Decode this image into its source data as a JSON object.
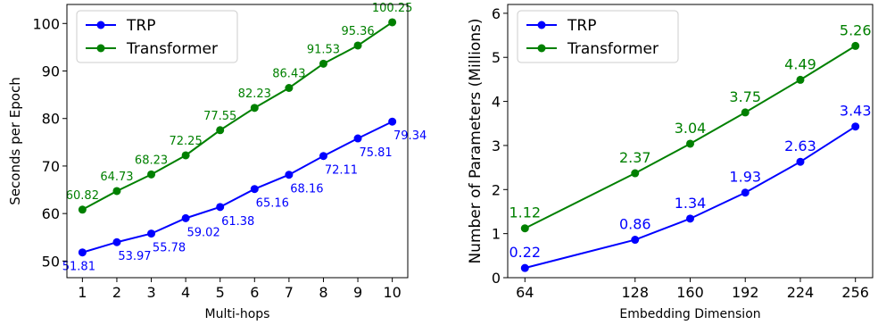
{
  "chart_data": [
    {
      "type": "line",
      "title": "",
      "xlabel": "Multi-hops",
      "ylabel": "Seconds per Epoch",
      "x": [
        1,
        2,
        3,
        4,
        5,
        6,
        7,
        8,
        9,
        10
      ],
      "xticks": [
        "1",
        "2",
        "3",
        "4",
        "5",
        "6",
        "7",
        "8",
        "9",
        "10"
      ],
      "yticks": [
        "50",
        "60",
        "70",
        "80",
        "90",
        "100"
      ],
      "xlim": [
        0.55,
        10.45
      ],
      "ylim": [
        46.5,
        104
      ],
      "legend": "top-left",
      "grid": false,
      "series": [
        {
          "name": "TRP",
          "color": "#0000ff",
          "values": [
            51.81,
            53.97,
            55.78,
            59.02,
            61.38,
            65.16,
            68.16,
            72.11,
            75.81,
            79.34
          ],
          "labels": [
            "51.81",
            "53.97",
            "55.78",
            "59.02",
            "61.38",
            "65.16",
            "68.16",
            "72.11",
            "75.81",
            "79.34"
          ]
        },
        {
          "name": "Transformer",
          "color": "#008000",
          "values": [
            60.82,
            64.73,
            68.23,
            72.25,
            77.55,
            82.23,
            86.43,
            91.53,
            95.36,
            100.25
          ],
          "labels": [
            "60.82",
            "64.73",
            "68.23",
            "72.25",
            "77.55",
            "82.23",
            "86.43",
            "91.53",
            "95.36",
            "100.25"
          ]
        }
      ]
    },
    {
      "type": "line",
      "title": "",
      "xlabel": "Embedding Dimension",
      "ylabel": "Number of Parameters (Millions)",
      "x": [
        64,
        128,
        160,
        192,
        224,
        256
      ],
      "xticks": [
        "64",
        "128",
        "160",
        "192",
        "224",
        "256"
      ],
      "yticks": [
        "0",
        "1",
        "2",
        "3",
        "4",
        "5",
        "6"
      ],
      "xlim": [
        54,
        266
      ],
      "ylim": [
        0,
        6.2
      ],
      "legend": "top-left",
      "grid": false,
      "series": [
        {
          "name": "TRP",
          "color": "#0000ff",
          "values": [
            0.22,
            0.86,
            1.34,
            1.93,
            2.63,
            3.43
          ],
          "labels": [
            "0.22",
            "0.86",
            "1.34",
            "1.93",
            "2.63",
            "3.43"
          ]
        },
        {
          "name": "Transformer",
          "color": "#008000",
          "values": [
            1.12,
            2.37,
            3.04,
            3.75,
            4.49,
            5.26
          ],
          "labels": [
            "1.12",
            "2.37",
            "3.04",
            "3.75",
            "4.49",
            "5.26"
          ]
        }
      ]
    }
  ]
}
